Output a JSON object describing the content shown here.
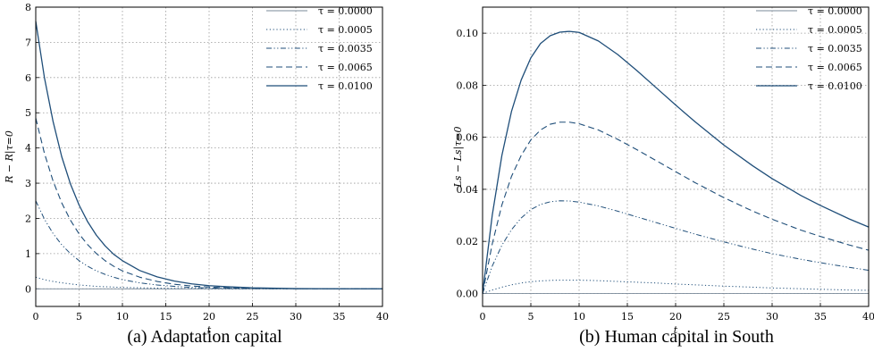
{
  "colors": {
    "series": "#1f4e79",
    "grid": "#9a9a9a",
    "axis": "#000000"
  },
  "chart_data": [
    {
      "type": "line",
      "caption": "(a)  Adaptation capital",
      "xlabel": "t",
      "ylabel": "R − R|τ=0",
      "xlim": [
        0,
        40
      ],
      "ylim": [
        -0.5,
        8
      ],
      "xticks": [
        "0",
        "5",
        "10",
        "15",
        "20",
        "25",
        "30",
        "35",
        "40"
      ],
      "yticks": [
        "0",
        "1",
        "2",
        "3",
        "4",
        "5",
        "6",
        "7",
        "8"
      ],
      "grid": true,
      "legend_position": "top-right",
      "x": [
        0,
        1,
        2,
        3,
        4,
        5,
        6,
        7,
        8,
        9,
        10,
        12,
        14,
        16,
        18,
        20,
        22,
        25,
        30,
        35,
        40
      ],
      "series": [
        {
          "name": "τ = 0.0000",
          "style": "solid-thin",
          "values": [
            0,
            0,
            0,
            0,
            0,
            0,
            0,
            0,
            0,
            0,
            0,
            0,
            0,
            0,
            0,
            0,
            0,
            0,
            0,
            0,
            0
          ]
        },
        {
          "name": "τ = 0.0005",
          "style": "dotted",
          "values": [
            0.33,
            0.26,
            0.21,
            0.17,
            0.14,
            0.11,
            0.09,
            0.07,
            0.06,
            0.05,
            0.04,
            0.03,
            0.02,
            0.01,
            0.01,
            0.005,
            0.003,
            0.002,
            0.001,
            0,
            0
          ]
        },
        {
          "name": "τ = 0.0035",
          "style": "dashdot",
          "values": [
            2.5,
            1.98,
            1.57,
            1.25,
            1.0,
            0.8,
            0.64,
            0.51,
            0.41,
            0.33,
            0.26,
            0.17,
            0.11,
            0.07,
            0.04,
            0.025,
            0.016,
            0.008,
            0.002,
            0.001,
            0
          ]
        },
        {
          "name": "τ = 0.0065",
          "style": "dashed",
          "values": [
            4.85,
            3.85,
            3.06,
            2.44,
            1.95,
            1.56,
            1.25,
            1.0,
            0.8,
            0.64,
            0.51,
            0.33,
            0.21,
            0.13,
            0.08,
            0.05,
            0.03,
            0.015,
            0.004,
            0.001,
            0
          ]
        },
        {
          "name": "τ = 0.0100",
          "style": "solid",
          "values": [
            7.6,
            6.0,
            4.75,
            3.75,
            2.98,
            2.38,
            1.9,
            1.52,
            1.22,
            0.98,
            0.8,
            0.52,
            0.34,
            0.22,
            0.14,
            0.09,
            0.06,
            0.03,
            0.008,
            0.002,
            0.001
          ]
        }
      ]
    },
    {
      "type": "line",
      "caption": "(b)  Human capital in South",
      "xlabel": "t",
      "ylabel": "Ls − Ls|τ=0",
      "xlim": [
        0,
        40
      ],
      "ylim": [
        -0.005,
        0.11
      ],
      "xticks": [
        "0",
        "5",
        "10",
        "15",
        "20",
        "25",
        "30",
        "35",
        "40"
      ],
      "yticks": [
        "0.00",
        "0.02",
        "0.04",
        "0.06",
        "0.08",
        "0.10"
      ],
      "grid": true,
      "legend_position": "top-right",
      "x": [
        0,
        1,
        2,
        3,
        4,
        5,
        6,
        7,
        8,
        9,
        10,
        12,
        14,
        16,
        18,
        20,
        22,
        25,
        28,
        30,
        33,
        35,
        38,
        40
      ],
      "series": [
        {
          "name": "τ = 0.0000",
          "style": "solid-thin",
          "values": [
            0,
            0,
            0,
            0,
            0,
            0,
            0,
            0,
            0,
            0,
            0,
            0,
            0,
            0,
            0,
            0,
            0,
            0,
            0,
            0,
            0,
            0,
            0,
            0
          ]
        },
        {
          "name": "τ = 0.0005",
          "style": "dotted",
          "values": [
            0,
            0.0013,
            0.0024,
            0.0033,
            0.004,
            0.0045,
            0.0048,
            0.005,
            0.0051,
            0.0051,
            0.0051,
            0.0049,
            0.0046,
            0.0043,
            0.004,
            0.0036,
            0.0033,
            0.0028,
            0.0024,
            0.0021,
            0.0018,
            0.0016,
            0.0013,
            0.0012
          ]
        },
        {
          "name": "τ = 0.0035",
          "style": "dashdot",
          "values": [
            0,
            0.0105,
            0.0185,
            0.0245,
            0.029,
            0.0322,
            0.0342,
            0.0352,
            0.0356,
            0.0355,
            0.0351,
            0.0336,
            0.0316,
            0.0294,
            0.0272,
            0.025,
            0.0228,
            0.0198,
            0.017,
            0.0153,
            0.0131,
            0.0118,
            0.01,
            0.0089
          ]
        },
        {
          "name": "τ = 0.0065",
          "style": "dashed",
          "values": [
            0,
            0.019,
            0.034,
            0.045,
            0.053,
            0.059,
            0.0628,
            0.065,
            0.0658,
            0.0658,
            0.0652,
            0.0628,
            0.0592,
            0.0552,
            0.051,
            0.0468,
            0.0426,
            0.0368,
            0.0316,
            0.0285,
            0.0243,
            0.0219,
            0.0186,
            0.0166
          ]
        },
        {
          "name": "τ = 0.0100",
          "style": "solid",
          "values": [
            0,
            0.03,
            0.053,
            0.07,
            0.082,
            0.0905,
            0.096,
            0.099,
            0.1004,
            0.1007,
            0.1003,
            0.097,
            0.0918,
            0.0856,
            0.079,
            0.0724,
            0.066,
            0.057,
            0.049,
            0.0441,
            0.0376,
            0.0338,
            0.0286,
            0.0255
          ]
        }
      ]
    }
  ]
}
